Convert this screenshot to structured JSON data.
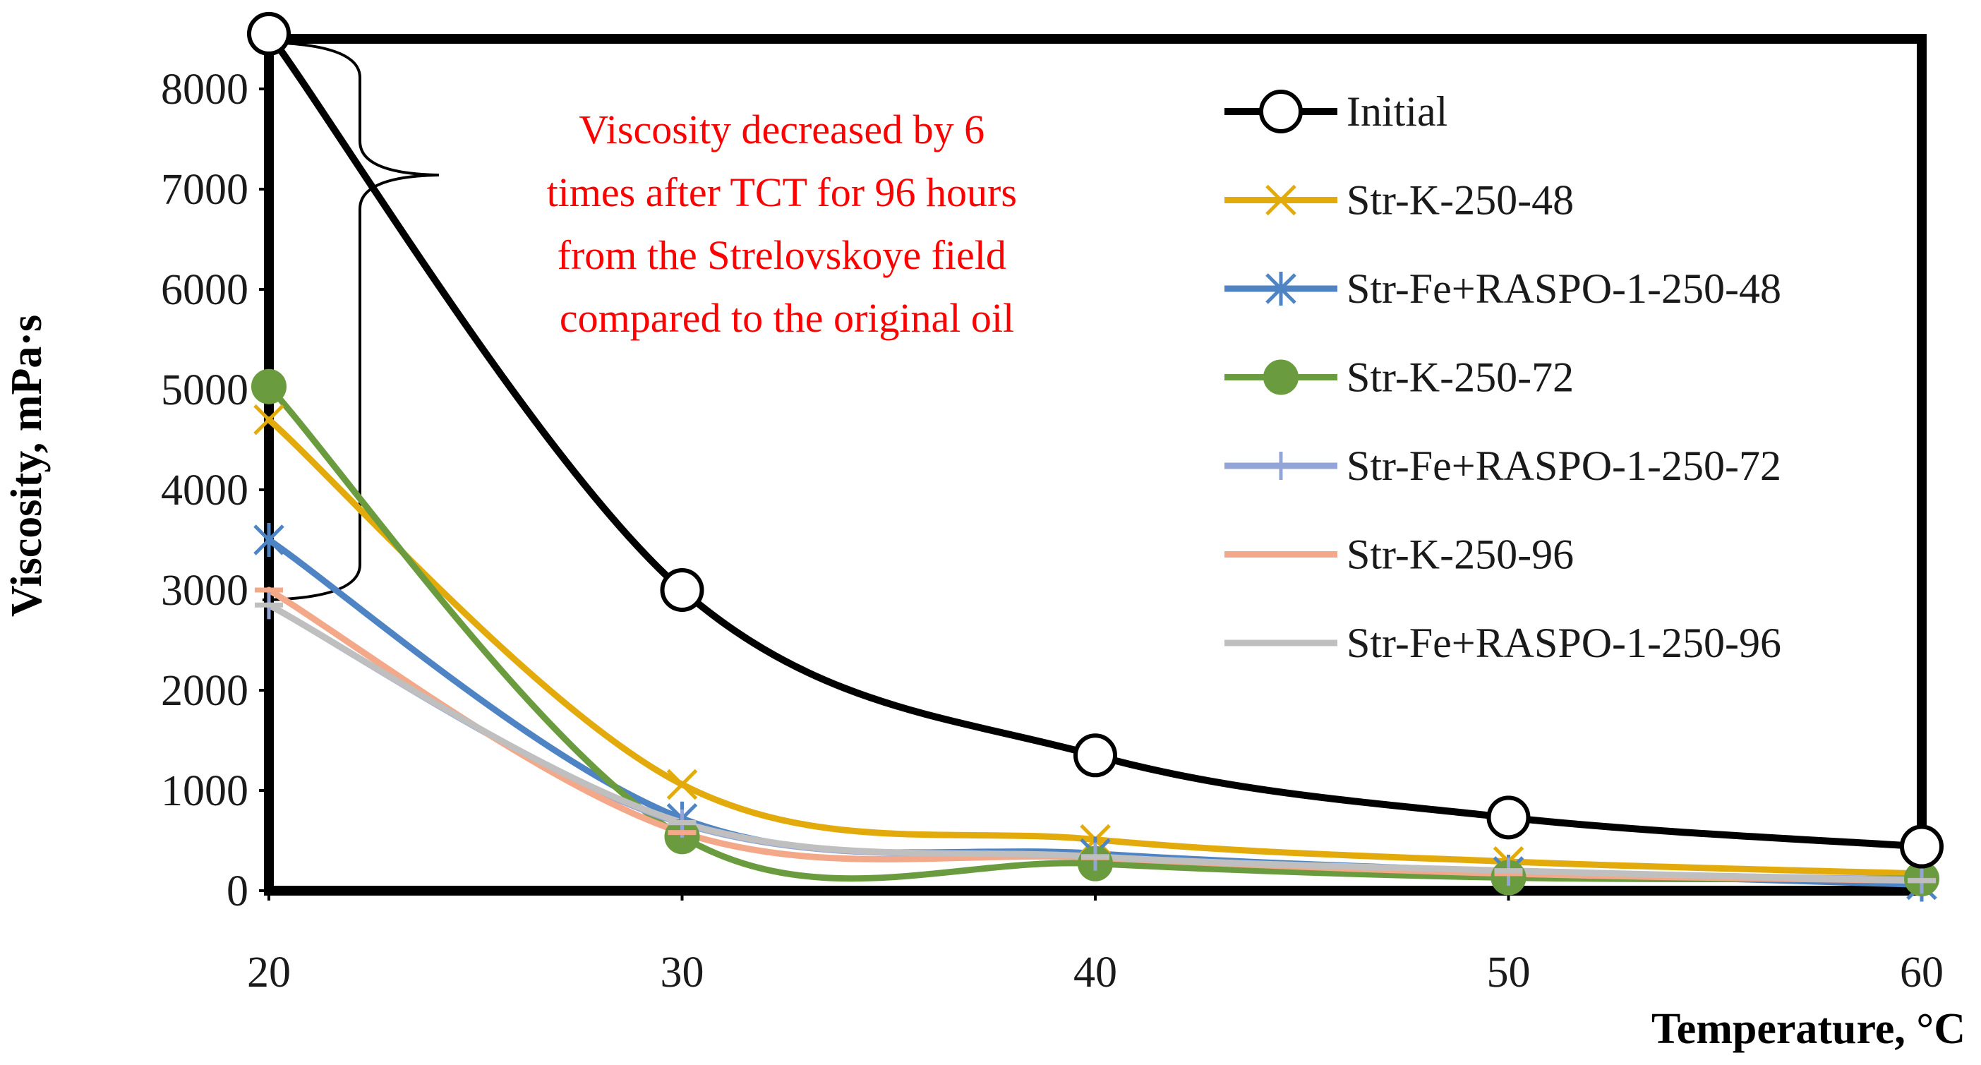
{
  "chart_data": {
    "type": "line",
    "title": "",
    "xlabel": "Temperature, °C",
    "ylabel": "Viscosity, mPa·s",
    "xlim": [
      20,
      60
    ],
    "ylim": [
      0,
      8500
    ],
    "x_ticks": [
      20,
      30,
      40,
      50,
      60
    ],
    "y_ticks": [
      0,
      1000,
      2000,
      3000,
      4000,
      5000,
      6000,
      7000,
      8000
    ],
    "grid": false,
    "legend_position": "right",
    "x": [
      20,
      30,
      40,
      50,
      60
    ],
    "series": [
      {
        "name": "Initial",
        "values": [
          8550,
          3000,
          1350,
          730,
          440
        ],
        "color": "#000000",
        "marker": "open-circle"
      },
      {
        "name": "Str-K-250-48",
        "values": [
          4700,
          1060,
          510,
          290,
          170
        ],
        "color": "#e2ab0b",
        "marker": "x"
      },
      {
        "name": "Str-Fe+RASPO-1-250-48",
        "values": [
          3500,
          720,
          370,
          190,
          60
        ],
        "color": "#4e84c4",
        "marker": "asterisk"
      },
      {
        "name": "Str-K-250-72",
        "values": [
          5030,
          540,
          270,
          130,
          120
        ],
        "color": "#6a9c3f",
        "marker": "filled-circle"
      },
      {
        "name": "Str-Fe+RASPO-1-250-72",
        "values": [
          2850,
          670,
          340,
          190,
          110
        ],
        "color": "#93a5d7",
        "marker": "plus"
      },
      {
        "name": "Str-K-250-96",
        "values": [
          3000,
          580,
          330,
          170,
          100
        ],
        "color": "#f4a88a",
        "marker": "dash"
      },
      {
        "name": "Str-Fe+RASPO-1-250-96",
        "values": [
          2850,
          680,
          340,
          200,
          100
        ],
        "color": "#bfbfbf",
        "marker": "dash"
      }
    ],
    "annotation": {
      "lines": [
        "Viscosity decreased by 6",
        "times after TCT for 96 hours",
        "from the Strelovskoye field",
        "compared to the original oil"
      ],
      "color": "#ff0000"
    }
  }
}
